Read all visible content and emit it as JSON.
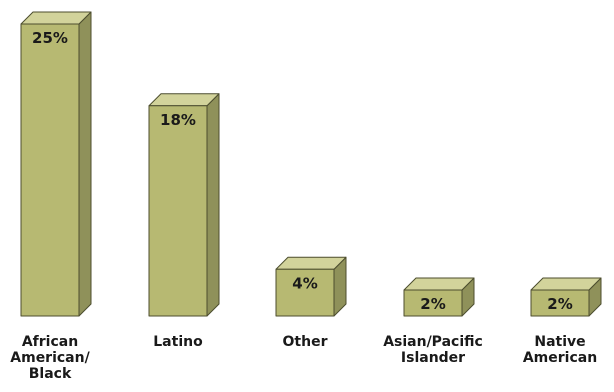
{
  "chart_data": {
    "type": "bar",
    "style": "3d-column",
    "categories": [
      "African\nAmerican/\nBlack",
      "Latino",
      "Other",
      "Asian/Pacific\nIslander",
      "Native\nAmerican"
    ],
    "values": [
      25,
      18,
      4,
      2,
      2
    ],
    "data_labels": [
      "25%",
      "18%",
      "4%",
      "2%",
      "2%"
    ],
    "ylim": [
      0,
      25
    ],
    "grid": false,
    "legend": "none"
  },
  "colors": {
    "bar_front": "#b7b972",
    "bar_top": "#d2d39b",
    "bar_side": "#8f915a",
    "bar_edge": "#4c4d2e",
    "text": "#1a1a1a"
  }
}
